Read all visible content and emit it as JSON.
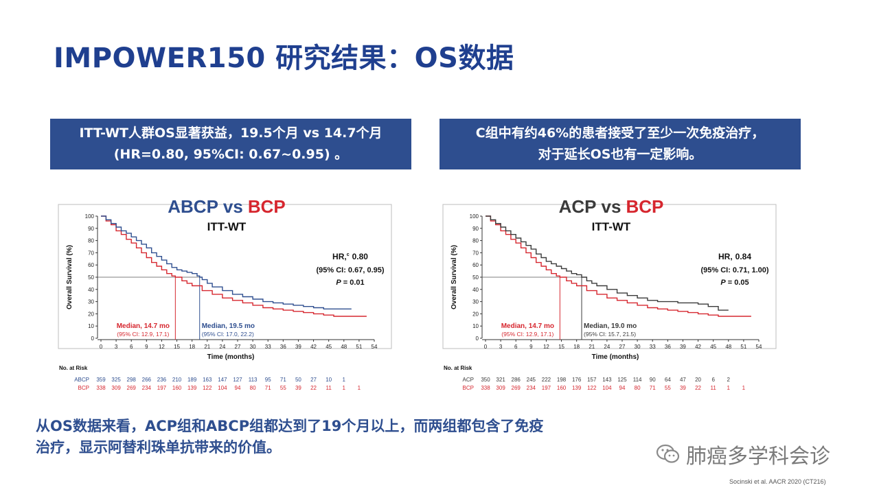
{
  "title": "IMPOWER150 研究结果：OS数据",
  "box_left": {
    "line1": "ITT-WT人群OS显著获益，19.5个月  vs 14.7个月",
    "line2": "(HR=0.80, 95%CI: 0.67~0.95) 。"
  },
  "box_right": {
    "line1": "C组中有约46%的患者接受了至少一次免疫治疗，",
    "line2": "对于延长OS也有一定影响。"
  },
  "bottom_text": {
    "line1": "从OS数据来看，ACP组和ABCP组都达到了19个月以上，而两组都包含了免疫",
    "line2": "治疗，显示阿替利珠单抗带来的价值。"
  },
  "watermark": "肺癌多学科会诊",
  "citation": "Socinski et al. AACR 2020  (CT216)",
  "colors": {
    "title": "#1f3f8f",
    "box": "#2e4e8f",
    "blue_series": "#2e4e8f",
    "red_series": "#d6262e",
    "gray_series": "#3a3a3a"
  },
  "chart_data": [
    {
      "type": "line",
      "title_a": "ABCP",
      "title_vs": "vs",
      "title_b": "BCP",
      "subtitle": "ITT-WT",
      "ylabel": "Overall Survival (%)",
      "xlabel": "Time (months)",
      "xlim": [
        0,
        54
      ],
      "ylim": [
        0,
        100
      ],
      "xticks": [
        0,
        3,
        6,
        9,
        12,
        15,
        18,
        21,
        24,
        27,
        30,
        33,
        36,
        39,
        42,
        45,
        48,
        51,
        54
      ],
      "yticks": [
        0,
        10,
        20,
        30,
        40,
        50,
        60,
        70,
        80,
        90,
        100
      ],
      "hr_label": "HR,",
      "hr_sup": "c",
      "hr_value": "0.80",
      "ci": "(95% CI: 0.67, 0.95)",
      "p_label": "P",
      "p_value": "= 0.01",
      "median_a": {
        "label": "Median, 19.5 mo",
        "ci": "(95% CI: 17.0, 22.2)",
        "x": 19.5
      },
      "median_b": {
        "label": "Median, 14.7 mo",
        "ci": "(95% CI: 12.9, 17.1)",
        "x": 14.7
      },
      "series": [
        {
          "name": "ABCP",
          "color": "#2e4e8f",
          "x": [
            0,
            1,
            2,
            3,
            4,
            5,
            6,
            7,
            8,
            9,
            10,
            11,
            12,
            13,
            14,
            15,
            16,
            17,
            18,
            19,
            19.5,
            20,
            21,
            22,
            24,
            26,
            28,
            30,
            32,
            34,
            36,
            38,
            40,
            42,
            44,
            46,
            48,
            49.5
          ],
          "y": [
            100,
            97,
            94,
            91,
            88,
            86,
            83,
            80,
            77,
            74,
            70,
            67,
            64,
            61,
            58,
            56,
            55,
            54,
            53,
            51,
            50,
            48,
            45,
            42,
            39,
            36,
            34,
            32,
            30,
            29,
            28,
            27,
            26,
            25,
            24,
            24,
            24,
            24
          ]
        },
        {
          "name": "BCP",
          "color": "#d6262e",
          "x": [
            0,
            1,
            2,
            3,
            4,
            5,
            6,
            7,
            8,
            9,
            10,
            11,
            12,
            13,
            14,
            14.7,
            16,
            17,
            18,
            20,
            22,
            24,
            26,
            28,
            30,
            32,
            34,
            36,
            38,
            40,
            42,
            44,
            46,
            48,
            50,
            52.5
          ],
          "y": [
            100,
            96,
            93,
            88,
            85,
            81,
            78,
            74,
            70,
            66,
            62,
            59,
            56,
            53,
            51,
            50,
            47,
            45,
            43,
            39,
            36,
            33,
            31,
            29,
            27,
            25,
            24,
            23,
            22,
            21,
            20,
            19,
            18,
            18,
            18,
            18
          ]
        }
      ],
      "risk_header": "No. at Risk",
      "risk_table": [
        {
          "label": "ABCP",
          "values": [
            "359",
            "325",
            "298",
            "266",
            "236",
            "210",
            "189",
            "163",
            "147",
            "127",
            "113",
            "95",
            "71",
            "50",
            "27",
            "10",
            "1",
            "",
            ""
          ]
        },
        {
          "label": "BCP",
          "values": [
            "338",
            "309",
            "269",
            "234",
            "197",
            "160",
            "139",
            "122",
            "104",
            "94",
            "80",
            "71",
            "55",
            "39",
            "22",
            "11",
            "1",
            "1",
            ""
          ]
        }
      ]
    },
    {
      "type": "line",
      "title_a": "ACP",
      "title_vs": "vs",
      "title_b": "BCP",
      "subtitle": "ITT-WT",
      "ylabel": "Overall Survival (%)",
      "xlabel": "Time (months)",
      "xlim": [
        0,
        54
      ],
      "ylim": [
        0,
        100
      ],
      "xticks": [
        0,
        3,
        6,
        9,
        12,
        15,
        18,
        21,
        24,
        27,
        30,
        33,
        36,
        39,
        42,
        45,
        48,
        51,
        54
      ],
      "yticks": [
        0,
        10,
        20,
        30,
        40,
        50,
        60,
        70,
        80,
        90,
        100
      ],
      "hr_label": "HR,",
      "hr_sup": "",
      "hr_value": "0.84",
      "ci": "(95% CI: 0.71, 1.00)",
      "p_label": "P",
      "p_value": "= 0.05",
      "median_a": {
        "label": "Median, 19.0 mo",
        "ci": "(95% CI: 15.7, 21.5)",
        "x": 19.0
      },
      "median_b": {
        "label": "Median, 14.7 mo",
        "ci": "(95% CI: 12.9, 17.1)",
        "x": 14.7
      },
      "series": [
        {
          "name": "ACP",
          "color": "#3a3a3a",
          "x": [
            0,
            1,
            2,
            3,
            4,
            5,
            6,
            7,
            8,
            9,
            10,
            11,
            12,
            13,
            14,
            15,
            16,
            17,
            18,
            19,
            20,
            21,
            22,
            24,
            26,
            28,
            30,
            32,
            34,
            36,
            38,
            40,
            42,
            44,
            46,
            48
          ],
          "y": [
            100,
            97,
            94,
            91,
            88,
            85,
            82,
            79,
            76,
            73,
            69,
            66,
            63,
            61,
            59,
            57,
            55,
            53,
            52,
            50,
            47,
            45,
            43,
            40,
            37,
            35,
            33,
            31,
            30,
            30,
            29,
            29,
            28,
            26,
            23,
            23
          ]
        },
        {
          "name": "BCP",
          "color": "#d6262e",
          "x": [
            0,
            1,
            2,
            3,
            4,
            5,
            6,
            7,
            8,
            9,
            10,
            11,
            12,
            13,
            14,
            14.7,
            16,
            17,
            18,
            20,
            22,
            24,
            26,
            28,
            30,
            32,
            34,
            36,
            38,
            40,
            42,
            44,
            46,
            48,
            50,
            52.5
          ],
          "y": [
            100,
            96,
            93,
            88,
            85,
            81,
            78,
            74,
            70,
            66,
            62,
            59,
            56,
            53,
            51,
            50,
            47,
            45,
            43,
            39,
            36,
            33,
            31,
            29,
            27,
            25,
            24,
            23,
            22,
            21,
            20,
            19,
            18,
            18,
            18,
            18
          ]
        }
      ],
      "risk_header": "No. at Risk",
      "risk_table": [
        {
          "label": "ACP",
          "values": [
            "350",
            "321",
            "286",
            "245",
            "222",
            "198",
            "176",
            "157",
            "143",
            "125",
            "114",
            "90",
            "64",
            "47",
            "20",
            "6",
            "2",
            "",
            ""
          ]
        },
        {
          "label": "BCP",
          "values": [
            "338",
            "309",
            "269",
            "234",
            "197",
            "160",
            "139",
            "122",
            "104",
            "94",
            "80",
            "71",
            "55",
            "39",
            "22",
            "11",
            "1",
            "1",
            ""
          ]
        }
      ]
    }
  ]
}
